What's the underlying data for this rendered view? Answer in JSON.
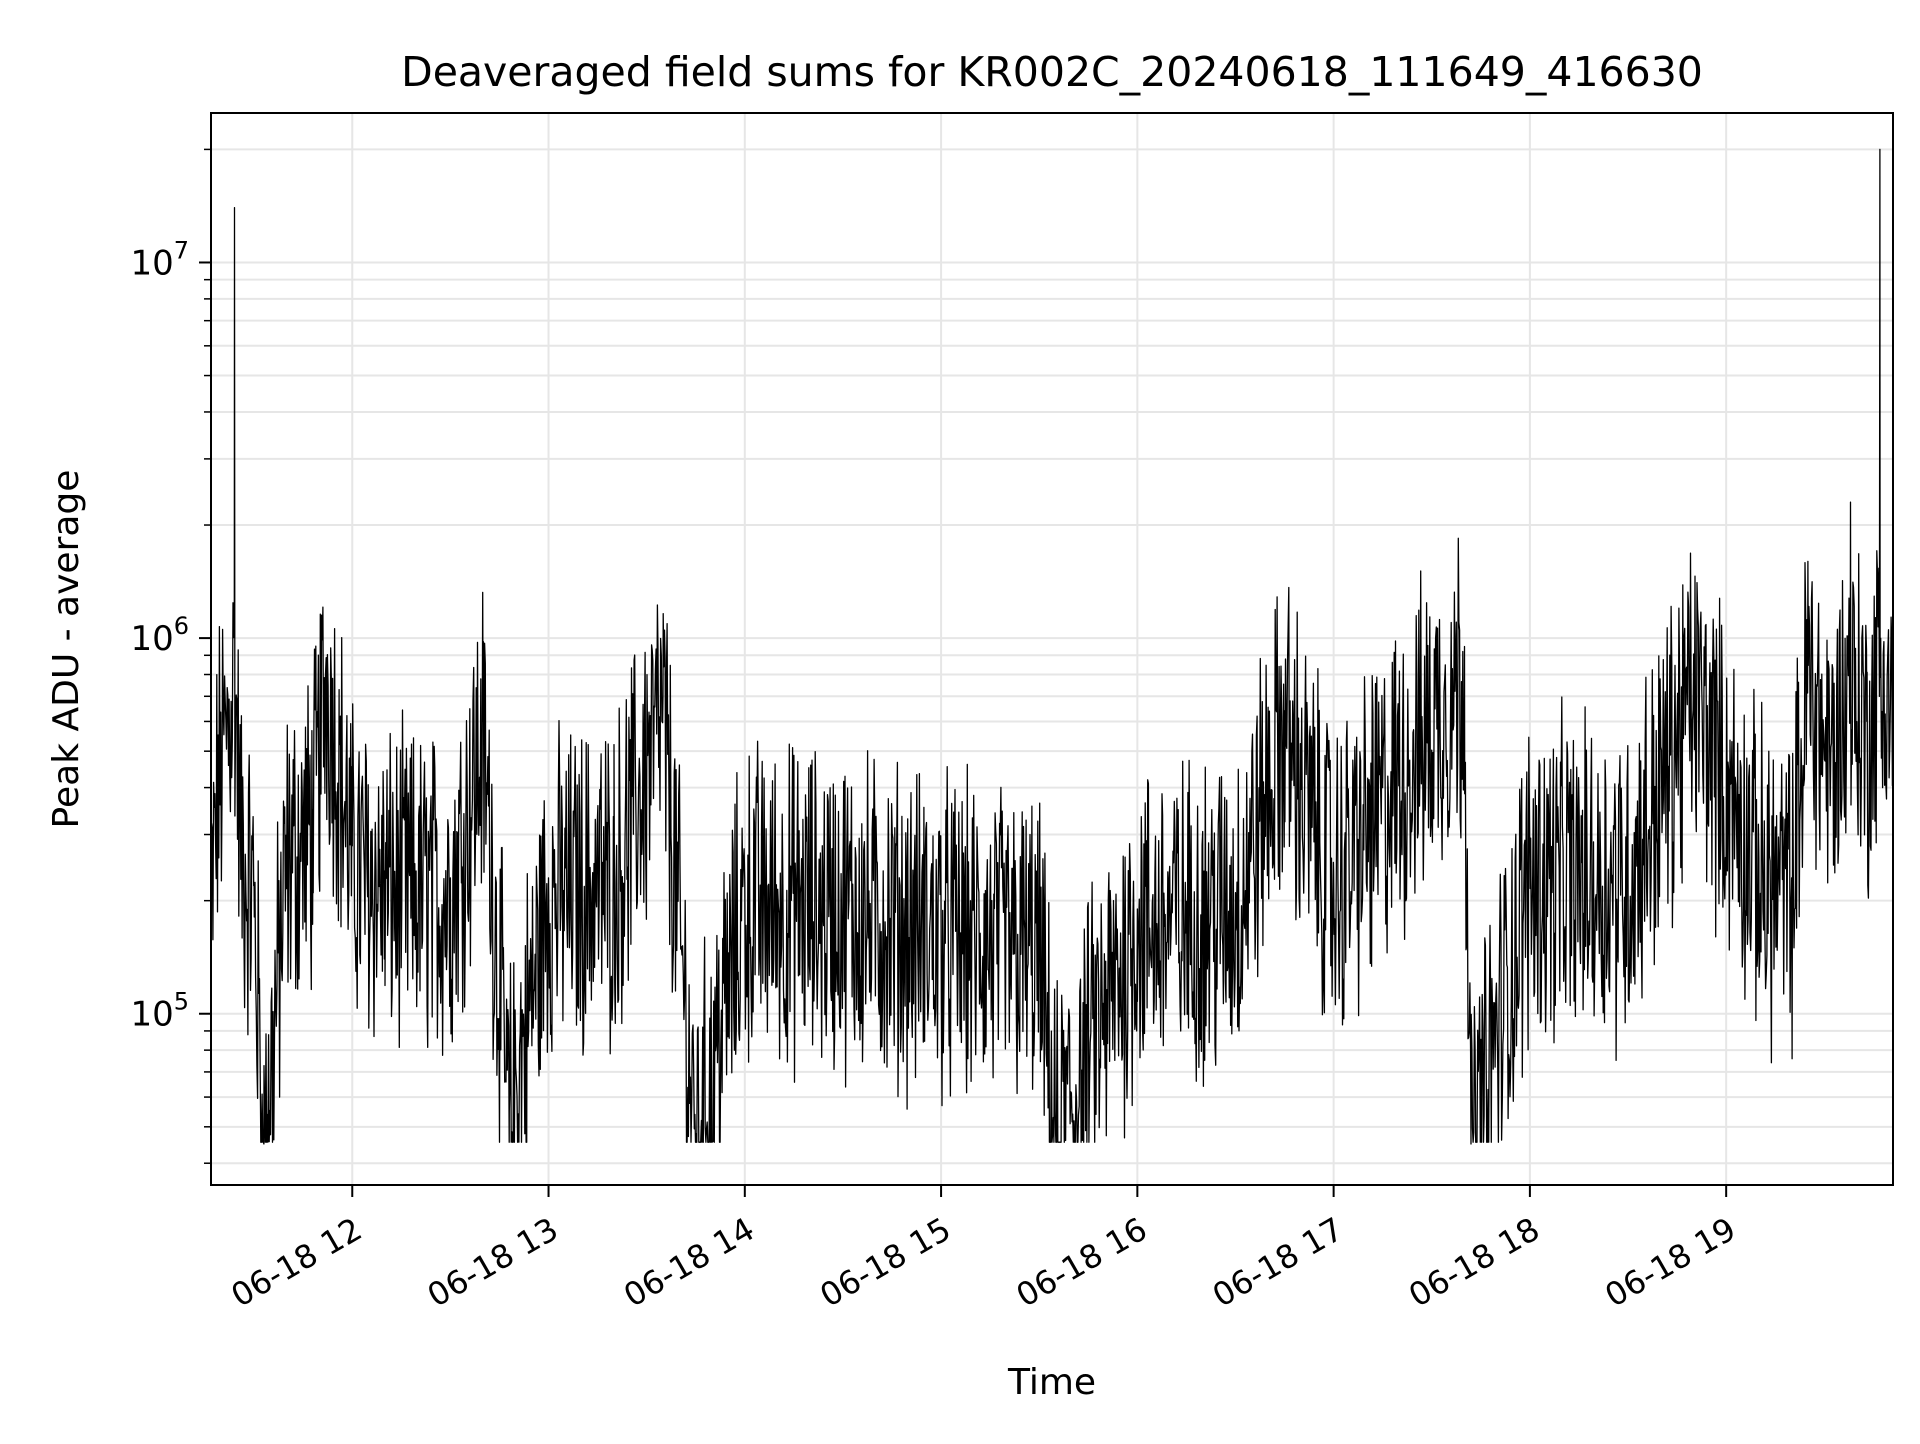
{
  "chart_data": {
    "type": "line",
    "title": "Deaveraged field sums for KR002C_20240618_111649_416630",
    "xlabel": "Time",
    "ylabel": "Peak ADU - average",
    "yscale": "log",
    "ylim": [
      35000,
      25000000
    ],
    "xlim": [
      "2024-06-18 11:16:49",
      "2024-06-18 19:51:00"
    ],
    "grid": true,
    "line_color": "#000000",
    "grid_color": "#e6e6e6",
    "x_ticks": [
      {
        "value": "2024-06-18 12:00",
        "label": "06-18 12"
      },
      {
        "value": "2024-06-18 13:00",
        "label": "06-18 13"
      },
      {
        "value": "2024-06-18 14:00",
        "label": "06-18 14"
      },
      {
        "value": "2024-06-18 15:00",
        "label": "06-18 15"
      },
      {
        "value": "2024-06-18 16:00",
        "label": "06-18 16"
      },
      {
        "value": "2024-06-18 17:00",
        "label": "06-18 17"
      },
      {
        "value": "2024-06-18 18:00",
        "label": "06-18 18"
      },
      {
        "value": "2024-06-18 19:00",
        "label": "06-18 19"
      }
    ],
    "y_ticks": [
      {
        "value": 100000,
        "base": "10",
        "exp": "5"
      },
      {
        "value": 1000000,
        "base": "10",
        "exp": "6"
      },
      {
        "value": 10000000,
        "base": "10",
        "exp": "7"
      }
    ],
    "series": [
      {
        "points": [
          [
            "2024-06-18 11:16:49",
            200000
          ],
          [
            "2024-06-18 11:19",
            450000
          ],
          [
            "2024-06-18 11:22",
            650000
          ],
          [
            "2024-06-18 11:24",
            14000000
          ],
          [
            "2024-06-18 11:26",
            300000
          ],
          [
            "2024-06-18 11:30",
            220000
          ],
          [
            "2024-06-18 11:33",
            45000
          ],
          [
            "2024-06-18 11:40",
            280000
          ],
          [
            "2024-06-18 11:48",
            350000
          ],
          [
            "2024-06-18 11:52",
            880000
          ],
          [
            "2024-06-18 11:56",
            520000
          ],
          [
            "2024-06-18 12:00",
            280000
          ],
          [
            "2024-06-18 12:10",
            240000
          ],
          [
            "2024-06-18 12:30",
            230000
          ],
          [
            "2024-06-18 12:40",
            600000
          ],
          [
            "2024-06-18 12:48",
            55000
          ],
          [
            "2024-06-18 13:00",
            230000
          ],
          [
            "2024-06-18 13:20",
            250000
          ],
          [
            "2024-06-18 13:35",
            700000
          ],
          [
            "2024-06-18 13:45",
            48000
          ],
          [
            "2024-06-18 14:00",
            220000
          ],
          [
            "2024-06-18 14:30",
            210000
          ],
          [
            "2024-06-18 15:00",
            180000
          ],
          [
            "2024-06-18 15:30",
            160000
          ],
          [
            "2024-06-18 15:35",
            48000
          ],
          [
            "2024-06-18 16:00",
            190000
          ],
          [
            "2024-06-18 16:30",
            210000
          ],
          [
            "2024-06-18 16:45",
            640000
          ],
          [
            "2024-06-18 17:00",
            240000
          ],
          [
            "2024-06-18 17:40",
            950000
          ],
          [
            "2024-06-18 17:42",
            45000
          ],
          [
            "2024-06-18 18:00",
            260000
          ],
          [
            "2024-06-18 18:30",
            250000
          ],
          [
            "2024-06-18 18:50",
            800000
          ],
          [
            "2024-06-18 19:10",
            260000
          ],
          [
            "2024-06-18 19:20",
            230000
          ],
          [
            "2024-06-18 19:25",
            1600000
          ],
          [
            "2024-06-18 19:32",
            500000
          ],
          [
            "2024-06-18 19:38",
            2300000
          ],
          [
            "2024-06-18 19:43",
            600000
          ],
          [
            "2024-06-18 19:47",
            20000000
          ],
          [
            "2024-06-18 19:51",
            700000
          ]
        ]
      }
    ]
  }
}
